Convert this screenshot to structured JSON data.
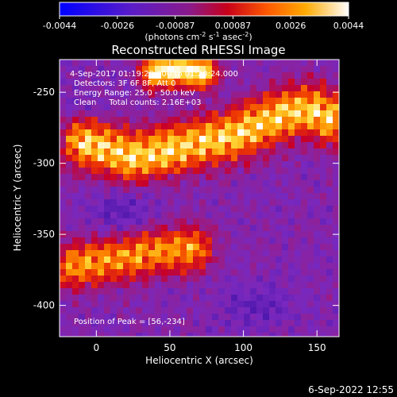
{
  "chart_data": {
    "type": "heatmap",
    "title": "Reconstructed RHESSI Image",
    "xlabel": "Heliocentric X (arcsec)",
    "ylabel": "Heliocentric Y (arcsec)",
    "xlim": [
      -25,
      165
    ],
    "ylim": [
      -422,
      -227
    ],
    "xticks": [
      0,
      50,
      100,
      150
    ],
    "yticks": [
      -250,
      -300,
      -350,
      -400
    ],
    "colorbar": {
      "min": -0.0044,
      "max": 0.0044,
      "ticks": [
        "-0.0044",
        "-0.0026",
        "-0.00087",
        "0.00087",
        "0.0026",
        "0.0044"
      ],
      "unit_label_parts": [
        "(photons cm",
        "-2",
        " s",
        "-1",
        " asec",
        "-2",
        ")"
      ]
    },
    "annotations": [
      "4-Sep-2017 01:19:20.000 to 01:20:24.000",
      "Detectors: 3F 6F 8F, Att 0",
      "Energy Range: 25.0 - 50.0 keV",
      "Clean     Total counts: 2.16E+03",
      "Position of Peak = [56,-234]"
    ],
    "peak": {
      "x": 56,
      "y": -234
    },
    "sources": [
      {
        "name": "upper ribbon",
        "points": [
          [
            -8,
            -285
          ],
          [
            25,
            -296
          ],
          [
            60,
            -288
          ],
          [
            95,
            -280
          ],
          [
            120,
            -268
          ],
          [
            145,
            -262
          ],
          [
            158,
            -268
          ]
        ]
      },
      {
        "name": "lower ribbon",
        "points": [
          [
            -15,
            -372
          ],
          [
            10,
            -368
          ],
          [
            40,
            -362
          ],
          [
            65,
            -360
          ]
        ]
      },
      {
        "name": "top peak",
        "points": [
          [
            40,
            -236
          ],
          [
            56,
            -234
          ],
          [
            72,
            -236
          ]
        ]
      }
    ]
  },
  "footer": {
    "timestamp": "6-Sep-2022 12:55"
  }
}
